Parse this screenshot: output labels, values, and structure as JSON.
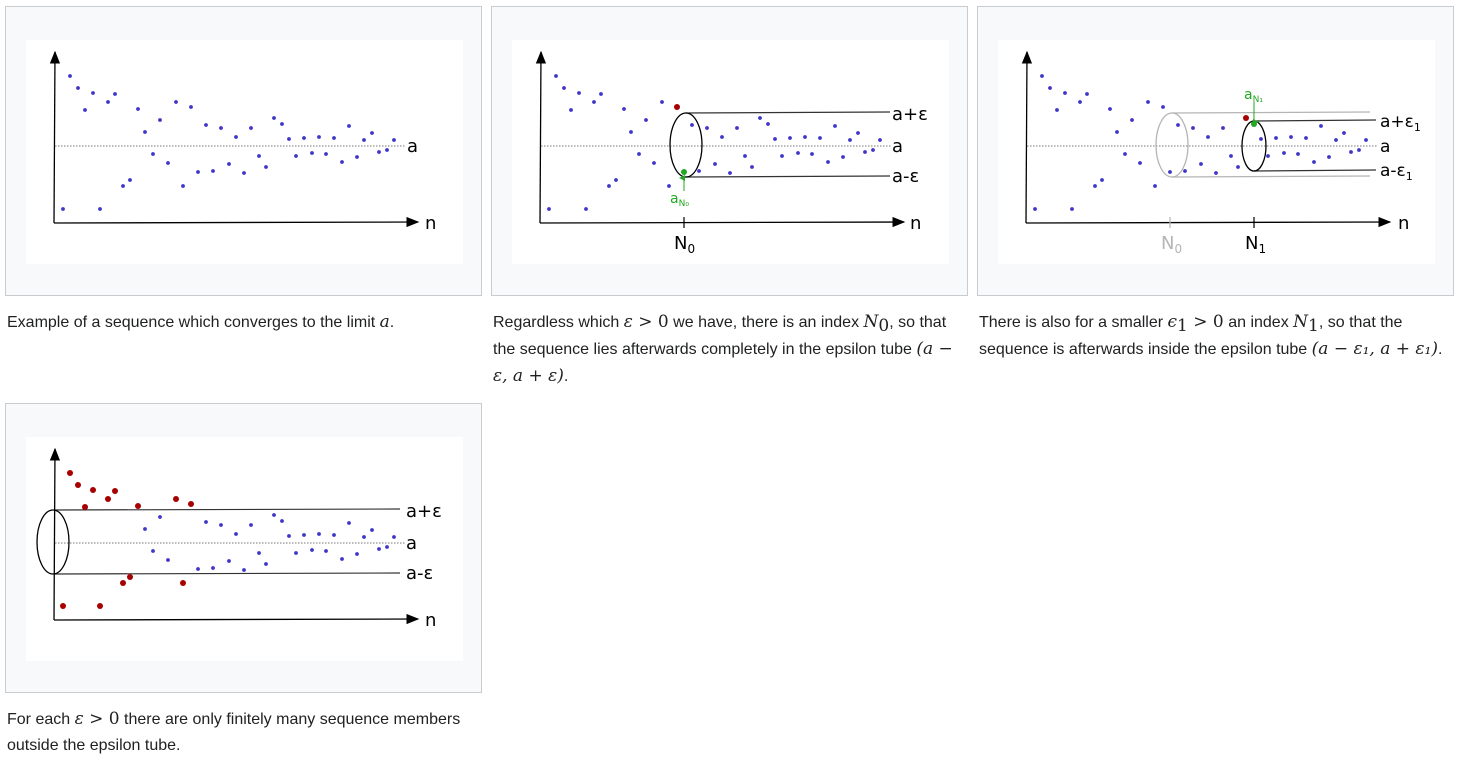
{
  "panels": [
    {
      "labels": {
        "a": "a",
        "n": "n"
      },
      "caption": {
        "pre": "Example of a sequence which converges to the limit ",
        "var": "a",
        "post": "."
      }
    },
    {
      "labels": {
        "a_plus": "a+ε",
        "a": "a",
        "a_minus": "a-ε",
        "n": "n",
        "tick": "N",
        "tick_sub": "0",
        "point": "a",
        "point_sub": "N₀"
      },
      "caption": {
        "t1": "Regardless which ",
        "eps": "ε",
        "gt0": " > 0",
        "t2": " we have, there is an index ",
        "N": "N",
        "N_sub": "0",
        "t3": ", so that the sequence lies afterwards completely in the epsilon tube ",
        "interval": "(a − ε, a + ε)",
        "t4": "."
      }
    },
    {
      "labels": {
        "a_plus": "a+ε",
        "a_plus_sub": "1",
        "a": "a",
        "a_minus": "a-ε",
        "a_minus_sub": "1",
        "n": "n",
        "tick0": "N",
        "tick0_sub": "0",
        "tick1": "N",
        "tick1_sub": "1",
        "point": "a",
        "point_sub": "N₁"
      },
      "caption": {
        "t1": "There is also for a smaller ",
        "eps": "ϵ",
        "eps_sub": "1",
        "gt0": " > 0",
        "t2": " an index ",
        "N": "N",
        "N_sub": "1",
        "t3": ", so that the sequence is afterwards inside the epsilon tube ",
        "interval": "(a − ε₁, a + ε₁)",
        "t4": "."
      }
    },
    {
      "labels": {
        "a_plus": "a+ε",
        "a": "a",
        "a_minus": "a-ε",
        "n": "n"
      },
      "caption": {
        "t1": "For each ",
        "eps": "ε",
        "gt0": " > 0",
        "t2": " there are only finitely many sequence members outside the epsilon tube."
      }
    }
  ],
  "colors": {
    "point_blue": "#3f35c8",
    "point_red": "#a80000",
    "highlight_green": "#22a822",
    "faded_gray": "#b4b4b4",
    "axis": "#000000"
  }
}
